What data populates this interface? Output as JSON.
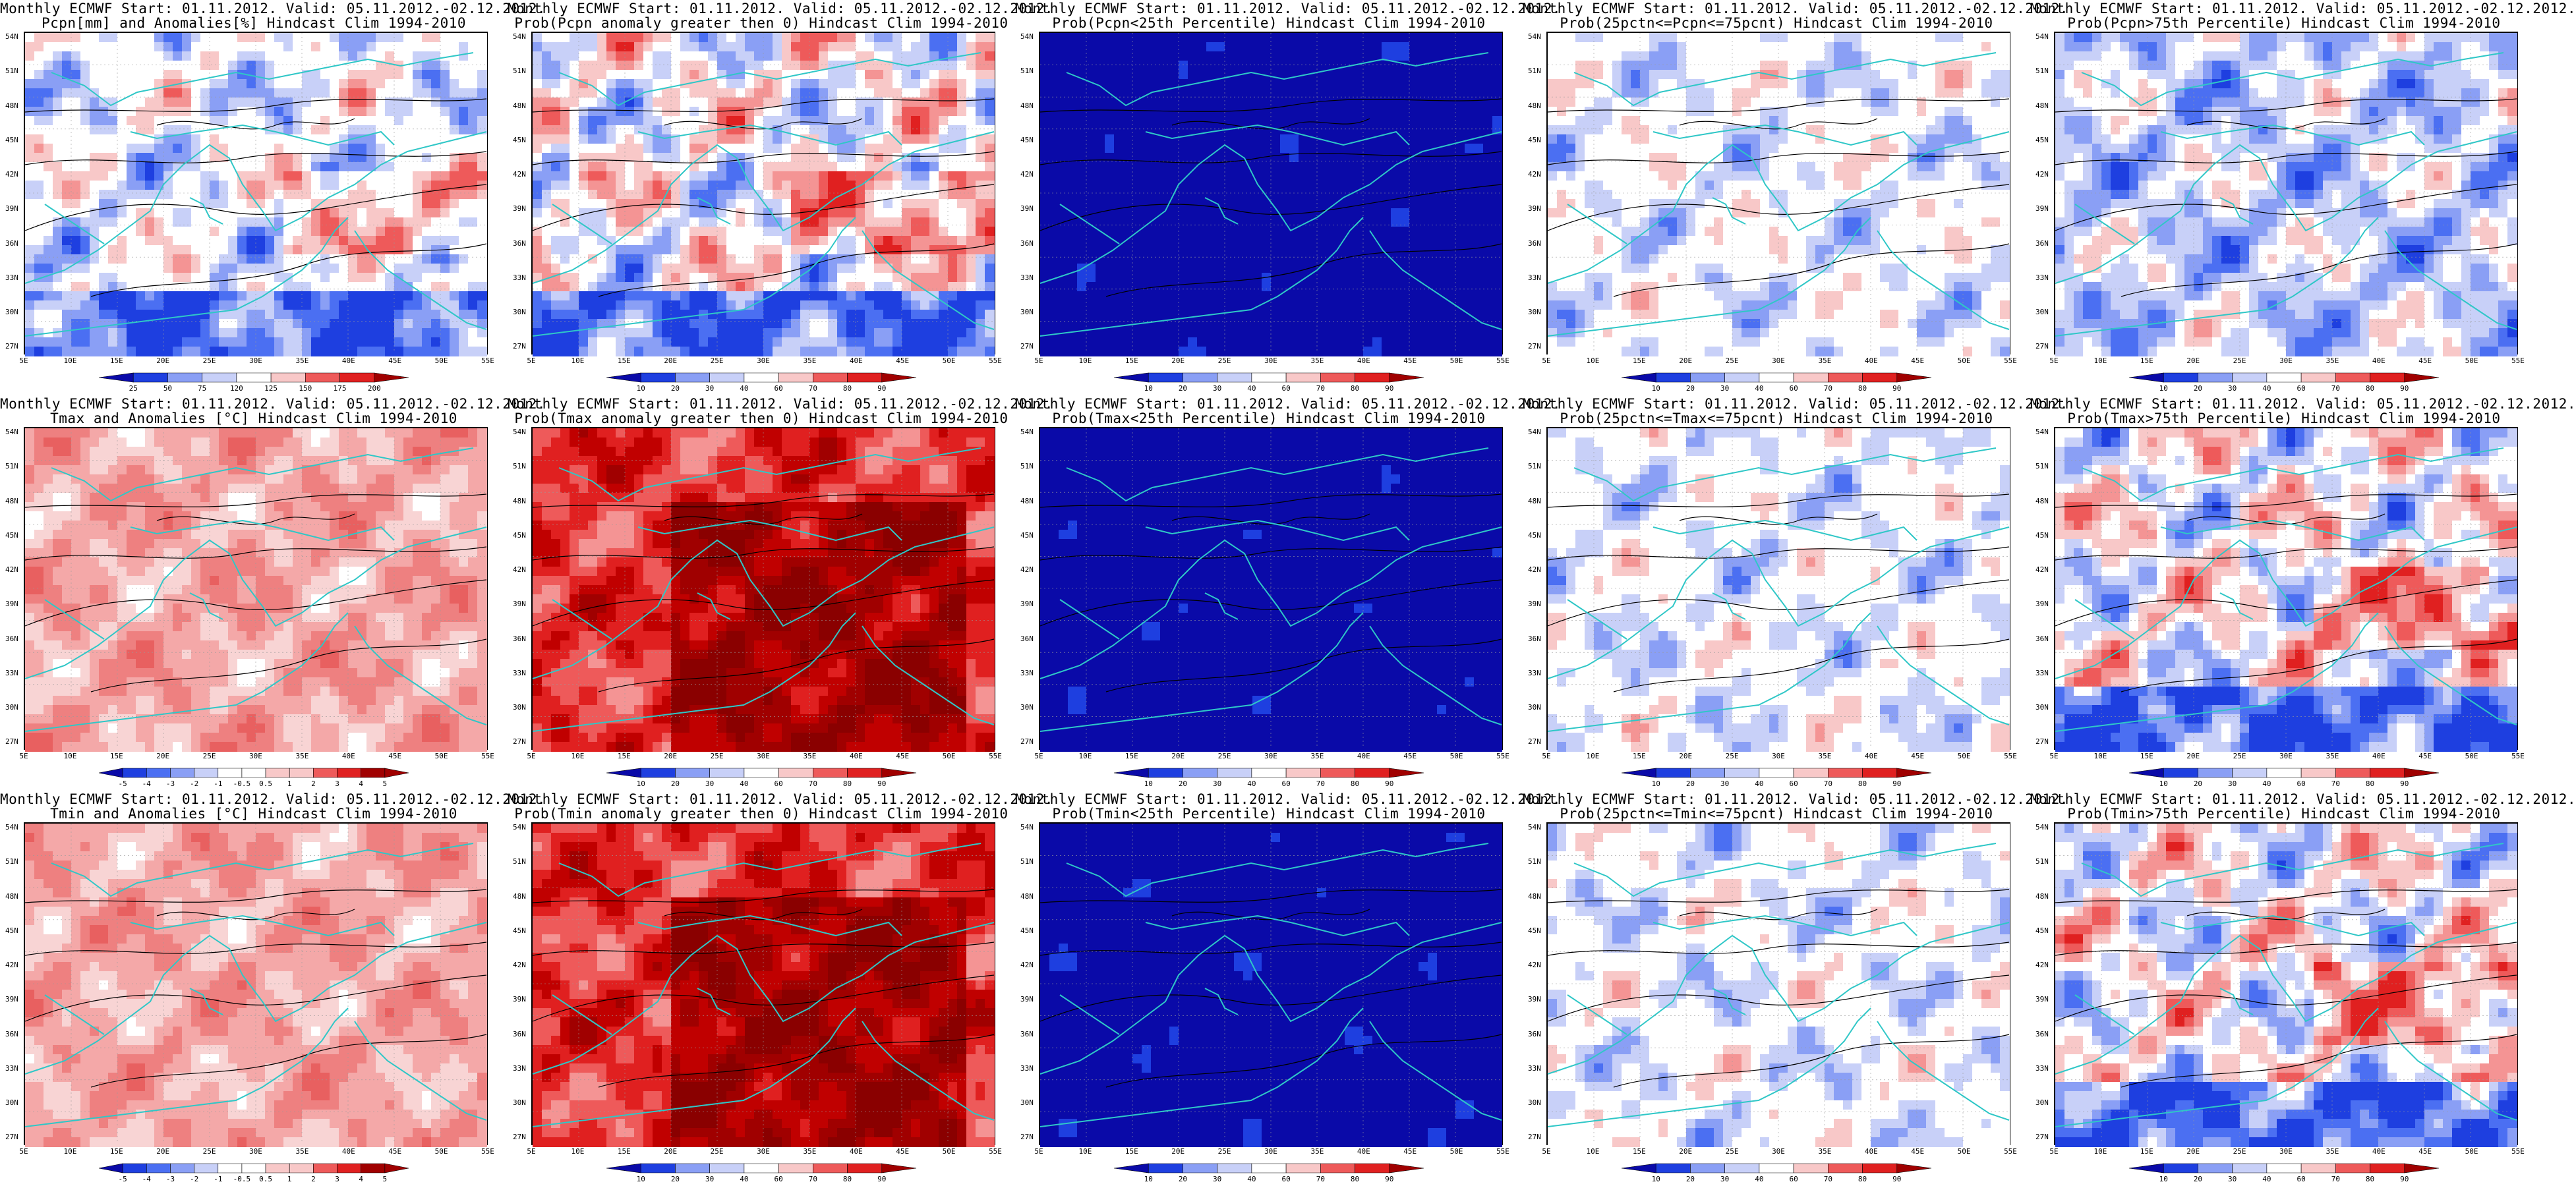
{
  "lat_ticks": [
    "54N",
    "51N",
    "48N",
    "45N",
    "42N",
    "39N",
    "36N",
    "33N",
    "30N",
    "27N"
  ],
  "lon_ticks": [
    "5E",
    "10E",
    "15E",
    "20E",
    "25E",
    "30E",
    "35E",
    "40E",
    "45E",
    "50E",
    "55E"
  ],
  "panels": [
    {
      "id": "precip-anomaly",
      "line1": "Monthly ECMWF Start: 01.11.2012. Valid: 05.11.2012.-02.12.2012.",
      "line2": "Pcpn[mm] and Anomalies[%] Hindcast Clim 1994-2010",
      "scheme": "anomaly",
      "cbar_labels": [
        "25",
        "50",
        "75",
        "120",
        "125",
        "150",
        "175",
        "200"
      ]
    },
    {
      "id": "precip-prob-anom-gt0",
      "line1": "Monthly ECMWF Start: 01.11.2012. Valid: 05.11.2012.-02.12.2012.",
      "line2": "Prob(Pcpn anomaly greater then 0) Hindcast Clim 1994-2010",
      "scheme": "prob-mix",
      "cbar_labels": [
        "10",
        "20",
        "30",
        "40",
        "60",
        "70",
        "80",
        "90"
      ]
    },
    {
      "id": "precip-prob-lt25",
      "line1": "Monthly ECMWF Start: 01.11.2012. Valid: 05.11.2012.-02.12.2012.",
      "line2": "Prob(Pcpn<25th Percentile) Hindcast Clim 1994-2010",
      "scheme": "prob-blue",
      "cbar_labels": [
        "10",
        "20",
        "30",
        "40",
        "60",
        "70",
        "80",
        "90"
      ]
    },
    {
      "id": "precip-prob-25-75",
      "line1": "Monthly ECMWF Start: 01.11.2012. Valid: 05.11.2012.-02.12.2012.",
      "line2": "Prob(25pctn<=Pcpn<=75pcnt) Hindcast Clim 1994-2010",
      "scheme": "prob-light",
      "cbar_labels": [
        "10",
        "20",
        "30",
        "40",
        "60",
        "70",
        "80",
        "90"
      ]
    },
    {
      "id": "precip-prob-gt75",
      "line1": "Monthly ECMWF Start: 01.11.2012. Valid: 05.11.2012.-02.12.2012.",
      "line2": "Prob(Pcpn>75th Percentile) Hindcast Clim 1994-2010",
      "scheme": "prob-bluemix",
      "cbar_labels": [
        "10",
        "20",
        "30",
        "40",
        "60",
        "70",
        "80",
        "90"
      ]
    },
    {
      "id": "tmax-anomaly",
      "line1": "Monthly ECMWF Start: 01.11.2012. Valid: 05.11.2012.-02.12.2012.",
      "line2": "Tmax and Anomalies [°C] Hindcast Clim 1994-2010",
      "scheme": "temp-anom",
      "cbar_labels": [
        "-5",
        "-4",
        "-3",
        "-2",
        "-1",
        "-0.5",
        "0.5",
        "1",
        "2",
        "3",
        "4",
        "5"
      ]
    },
    {
      "id": "tmax-prob-anom-gt0",
      "line1": "Monthly ECMWF Start: 01.11.2012. Valid: 05.11.2012.-02.12.2012.",
      "line2": "Prob(Tmax anomaly greater then 0) Hindcast Clim 1994-2010",
      "scheme": "prob-red",
      "cbar_labels": [
        "10",
        "20",
        "30",
        "40",
        "60",
        "70",
        "80",
        "90"
      ]
    },
    {
      "id": "tmax-prob-lt25",
      "line1": "Monthly ECMWF Start: 01.11.2012. Valid: 05.11.2012.-02.12.2012.",
      "line2": "Prob(Tmax<25th Percentile) Hindcast Clim 1994-2010",
      "scheme": "prob-blue",
      "cbar_labels": [
        "10",
        "20",
        "30",
        "40",
        "60",
        "70",
        "80",
        "90"
      ]
    },
    {
      "id": "tmax-prob-25-75",
      "line1": "Monthly ECMWF Start: 01.11.2012. Valid: 05.11.2012.-02.12.2012.",
      "line2": "Prob(25pctn<=Tmax<=75pcnt) Hindcast Clim 1994-2010",
      "scheme": "prob-light",
      "cbar_labels": [
        "10",
        "20",
        "30",
        "40",
        "60",
        "70",
        "80",
        "90"
      ]
    },
    {
      "id": "tmax-prob-gt75",
      "line1": "Monthly ECMWF Start: 01.11.2012. Valid: 05.11.2012.-02.12.2012.",
      "line2": "Prob(Tmax>75th Percentile) Hindcast Clim 1994-2010",
      "scheme": "prob-mix",
      "cbar_labels": [
        "10",
        "20",
        "30",
        "40",
        "60",
        "70",
        "80",
        "90"
      ]
    },
    {
      "id": "tmin-anomaly",
      "line1": "Monthly ECMWF Start: 01.11.2012. Valid: 05.11.2012.-02.12.2012.",
      "line2": "Tmin and Anomalies [°C] Hindcast Clim 1994-2010",
      "scheme": "temp-anom",
      "cbar_labels": [
        "-5",
        "-4",
        "-3",
        "-2",
        "-1",
        "-0.5",
        "0.5",
        "1",
        "2",
        "3",
        "4",
        "5"
      ]
    },
    {
      "id": "tmin-prob-anom-gt0",
      "line1": "Monthly ECMWF Start: 01.11.2012. Valid: 05.11.2012.-02.12.2012.",
      "line2": "Prob(Tmin anomaly greater then 0) Hindcast Clim 1994-2010",
      "scheme": "prob-red",
      "cbar_labels": [
        "10",
        "20",
        "30",
        "40",
        "60",
        "70",
        "80",
        "90"
      ]
    },
    {
      "id": "tmin-prob-lt25",
      "line1": "Monthly ECMWF Start: 01.11.2012. Valid: 05.11.2012.-02.12.2012.",
      "line2": "Prob(Tmin<25th Percentile) Hindcast Clim 1994-2010",
      "scheme": "prob-blue",
      "cbar_labels": [
        "10",
        "20",
        "30",
        "40",
        "60",
        "70",
        "80",
        "90"
      ]
    },
    {
      "id": "tmin-prob-25-75",
      "line1": "Monthly ECMWF Start: 01.11.2012. Valid: 05.11.2012.-02.12.2012.",
      "line2": "Prob(25pctn<=Tmin<=75pcnt) Hindcast Clim 1994-2010",
      "scheme": "prob-light",
      "cbar_labels": [
        "10",
        "20",
        "30",
        "40",
        "60",
        "70",
        "80",
        "90"
      ]
    },
    {
      "id": "tmin-prob-gt75",
      "line1": "Monthly ECMWF Start: 01.11.2012. Valid: 05.11.2012.-02.12.2012.",
      "line2": "Prob(Tmin>75th Percentile) Hindcast Clim 1994-2010",
      "scheme": "prob-mix",
      "cbar_labels": [
        "10",
        "20",
        "30",
        "40",
        "60",
        "70",
        "80",
        "90"
      ]
    }
  ],
  "colors": {
    "coastline": "#2fc7c7",
    "contour": "#000000",
    "blue_scale": [
      "#0a0aa8",
      "#1e3fe0",
      "#4b6ff2",
      "#8a9ff5",
      "#c8d0f8",
      "#ffffff"
    ],
    "red_scale": [
      "#ffffff",
      "#f8c8c8",
      "#f49494",
      "#ee5a5a",
      "#e02020",
      "#a00000"
    ]
  }
}
